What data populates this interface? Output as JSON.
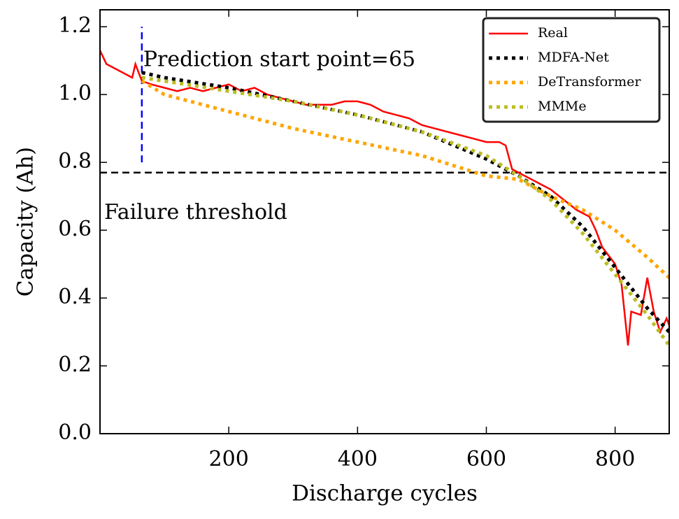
{
  "chart_data": {
    "type": "line",
    "xlabel": "Discharge cycles",
    "ylabel": "Capacity (Ah)",
    "annotations": [
      "Prediction start point=65",
      "Failure threshold"
    ],
    "threshold": 0.77,
    "prediction_start": 65,
    "xlim": [
      0,
      884
    ],
    "ylim": [
      0,
      1.25
    ],
    "xticks": [
      200,
      400,
      600,
      800
    ],
    "yticks": [
      {
        "value": 0,
        "label": "0.0"
      },
      0.2,
      0.4,
      0.6,
      0.8,
      {
        "value": 1,
        "label": "1.0"
      },
      1.2
    ],
    "legend": "upper right",
    "series": [
      {
        "name": "Real",
        "color": "#ff0000",
        "style": "solid",
        "x": [
          0,
          10,
          20,
          40,
          50,
          55,
          65,
          80,
          100,
          120,
          140,
          160,
          180,
          200,
          220,
          240,
          260,
          280,
          300,
          320,
          340,
          360,
          380,
          400,
          420,
          440,
          460,
          480,
          500,
          520,
          540,
          560,
          580,
          600,
          620,
          630,
          640,
          660,
          680,
          700,
          720,
          740,
          760,
          770,
          780,
          800,
          810,
          820,
          825,
          840,
          850,
          860,
          870,
          880,
          884
        ],
        "values": [
          1.13,
          1.09,
          1.08,
          1.06,
          1.05,
          1.09,
          1.04,
          1.03,
          1.02,
          1.01,
          1.02,
          1.01,
          1.02,
          1.03,
          1.01,
          1.02,
          1.0,
          0.99,
          0.98,
          0.97,
          0.97,
          0.97,
          0.98,
          0.98,
          0.97,
          0.95,
          0.94,
          0.93,
          0.91,
          0.9,
          0.89,
          0.88,
          0.87,
          0.86,
          0.86,
          0.85,
          0.78,
          0.76,
          0.74,
          0.72,
          0.69,
          0.66,
          0.64,
          0.6,
          0.55,
          0.5,
          0.44,
          0.26,
          0.36,
          0.35,
          0.46,
          0.36,
          0.3,
          0.34,
          0.32
        ]
      },
      {
        "name": "MDFA-Net",
        "color": "#000000",
        "style": "dotted",
        "x": [
          65,
          100,
          200,
          300,
          400,
          500,
          600,
          650,
          700,
          750,
          800,
          850,
          884
        ],
        "values": [
          1.065,
          1.05,
          1.02,
          0.98,
          0.94,
          0.89,
          0.81,
          0.76,
          0.7,
          0.61,
          0.49,
          0.37,
          0.3
        ]
      },
      {
        "name": "DeTransformer",
        "color": "#ffa500",
        "style": "dotted",
        "x": [
          65,
          100,
          200,
          300,
          400,
          500,
          600,
          650,
          700,
          750,
          800,
          850,
          884
        ],
        "values": [
          1.04,
          1.0,
          0.95,
          0.9,
          0.86,
          0.82,
          0.76,
          0.75,
          0.7,
          0.66,
          0.6,
          0.52,
          0.46
        ]
      },
      {
        "name": "MMMe",
        "color": "#bcbd22",
        "style": "dotted",
        "x": [
          65,
          100,
          200,
          300,
          400,
          500,
          600,
          650,
          700,
          750,
          800,
          850,
          884
        ],
        "values": [
          1.05,
          1.04,
          1.01,
          0.98,
          0.94,
          0.89,
          0.82,
          0.76,
          0.69,
          0.59,
          0.47,
          0.35,
          0.26
        ]
      }
    ]
  }
}
